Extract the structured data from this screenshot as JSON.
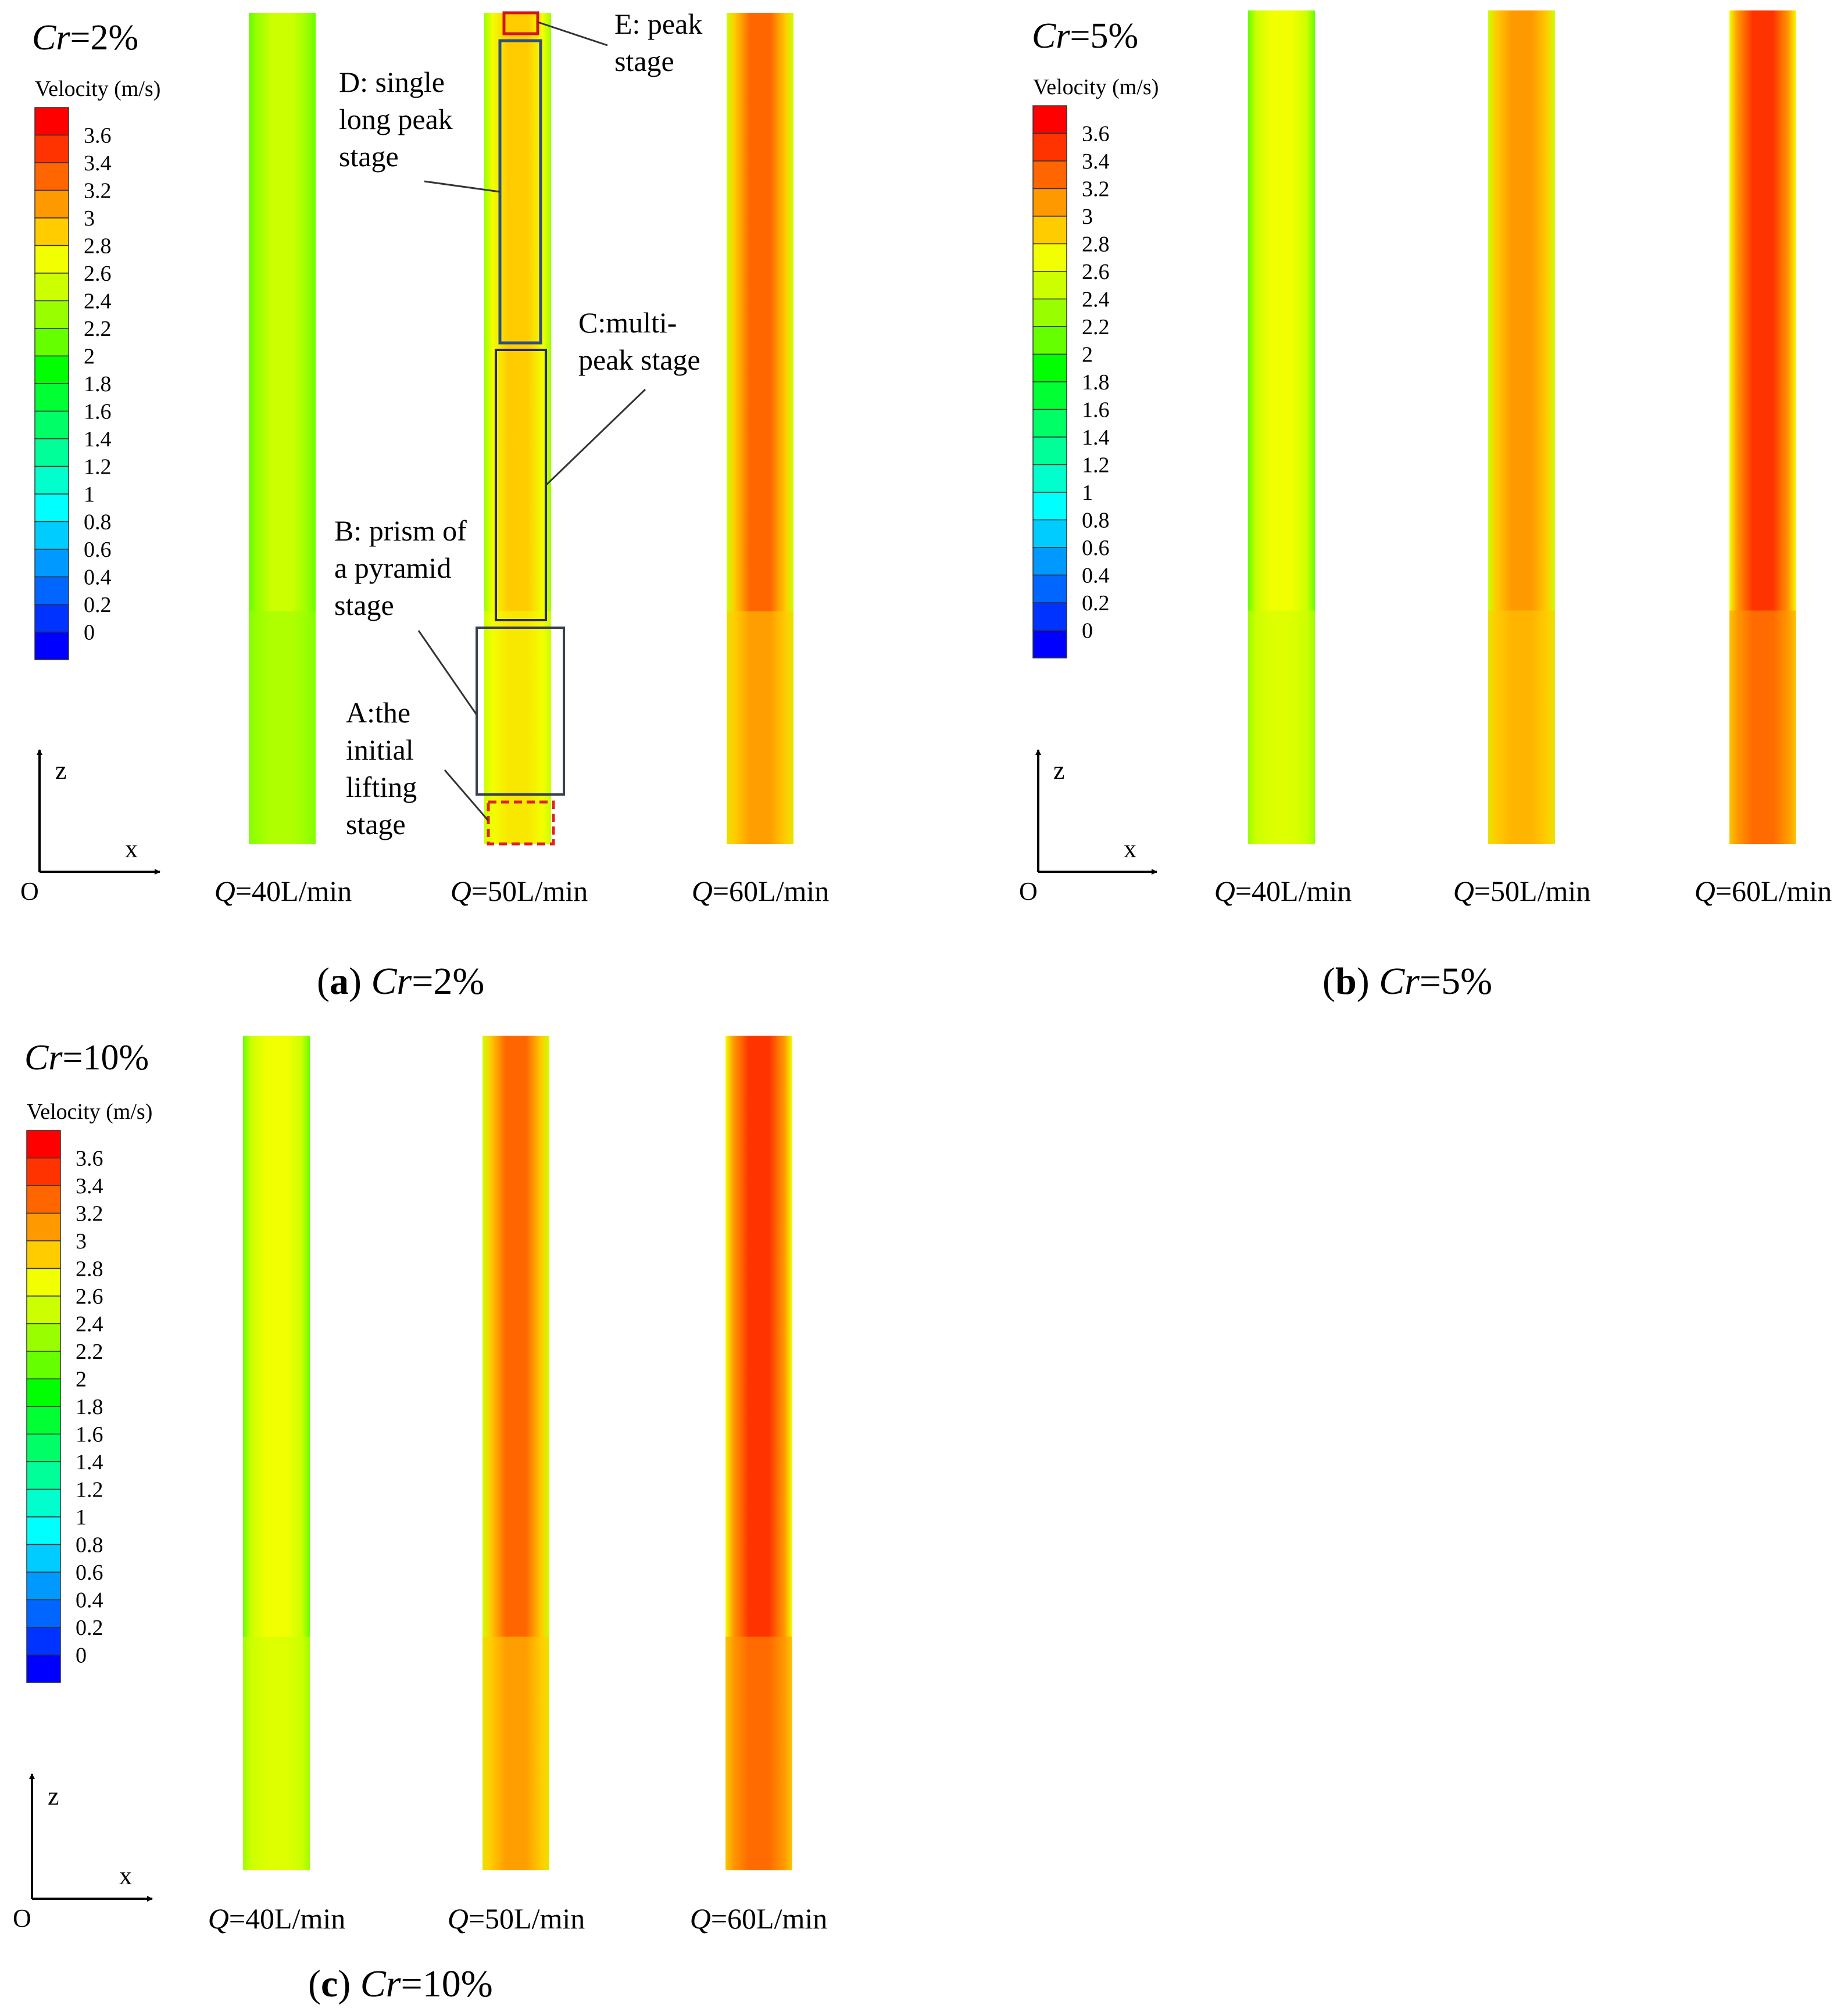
{
  "chart_data": {
    "type": "heatmap",
    "legend": {
      "title": "Velocity (m/s)",
      "ticks": [
        "3.6",
        "3.4",
        "3.2",
        "3",
        "2.8",
        "2.6",
        "2.4",
        "2.2",
        "2",
        "1.8",
        "1.6",
        "1.4",
        "1.2",
        "1",
        "0.8",
        "0.6",
        "0.4",
        "0.2",
        "0"
      ],
      "colors": [
        "#ff0000",
        "#ff3300",
        "#ff6600",
        "#ff9900",
        "#ffcc00",
        "#f2ff00",
        "#ccff00",
        "#99ff00",
        "#66ff00",
        "#00ff00",
        "#00ff33",
        "#00ff66",
        "#00ff99",
        "#00ffcc",
        "#00ffff",
        "#00ccff",
        "#0099ff",
        "#0066ff",
        "#0033ff",
        "#0000ff"
      ]
    },
    "axes": {
      "z": "z",
      "x": "x",
      "origin": "O"
    },
    "panels": [
      {
        "id": "a",
        "title_var": "Cr",
        "title_val": "=2%",
        "caption_letter": "a",
        "caption_var": "Cr",
        "caption_val": "=2%",
        "pipes": [
          {
            "q_var": "Q",
            "q_label": "=40L/min",
            "peak_velocity": 2.6,
            "wall_velocity": 2.2
          },
          {
            "q_var": "Q",
            "q_label": "=50L/min",
            "peak_velocity": 3.0,
            "wall_velocity": 2.4
          },
          {
            "q_var": "Q",
            "q_label": "=60L/min",
            "peak_velocity": 3.4,
            "wall_velocity": 2.6
          }
        ],
        "annotations": [
          {
            "label": "E: peak stage",
            "lines": [
              "E: peak",
              "stage"
            ]
          },
          {
            "label": "D: single long peak stage",
            "lines": [
              "D: single",
              "long peak",
              "stage"
            ]
          },
          {
            "label": "C:multi-peak stage",
            "lines": [
              "C:multi-",
              "peak stage"
            ]
          },
          {
            "label": "B: prism of a pyramid stage",
            "lines": [
              "B: prism of",
              "a pyramid",
              "stage"
            ]
          },
          {
            "label": "A:the initial lifting stage",
            "lines": [
              "A:the",
              "initial",
              "lifting",
              "stage"
            ]
          }
        ]
      },
      {
        "id": "b",
        "title_var": "Cr",
        "title_val": "=5%",
        "caption_letter": "b",
        "caption_var": "Cr",
        "caption_val": "=5%",
        "pipes": [
          {
            "q_var": "Q",
            "q_label": "=40L/min",
            "peak_velocity": 2.8,
            "wall_velocity": 2.2
          },
          {
            "q_var": "Q",
            "q_label": "=50L/min",
            "peak_velocity": 3.2,
            "wall_velocity": 2.6
          },
          {
            "q_var": "Q",
            "q_label": "=60L/min",
            "peak_velocity": 3.6,
            "wall_velocity": 2.8
          }
        ]
      },
      {
        "id": "c",
        "title_var": "Cr",
        "title_val": "=10%",
        "caption_letter": "c",
        "caption_var": "Cr",
        "caption_val": "=10%",
        "pipes": [
          {
            "q_var": "Q",
            "q_label": "=40L/min",
            "peak_velocity": 2.8,
            "wall_velocity": 2.2
          },
          {
            "q_var": "Q",
            "q_label": "=50L/min",
            "peak_velocity": 3.4,
            "wall_velocity": 2.6
          },
          {
            "q_var": "Q",
            "q_label": "=60L/min",
            "peak_velocity": 3.6,
            "wall_velocity": 2.8
          }
        ]
      }
    ]
  }
}
